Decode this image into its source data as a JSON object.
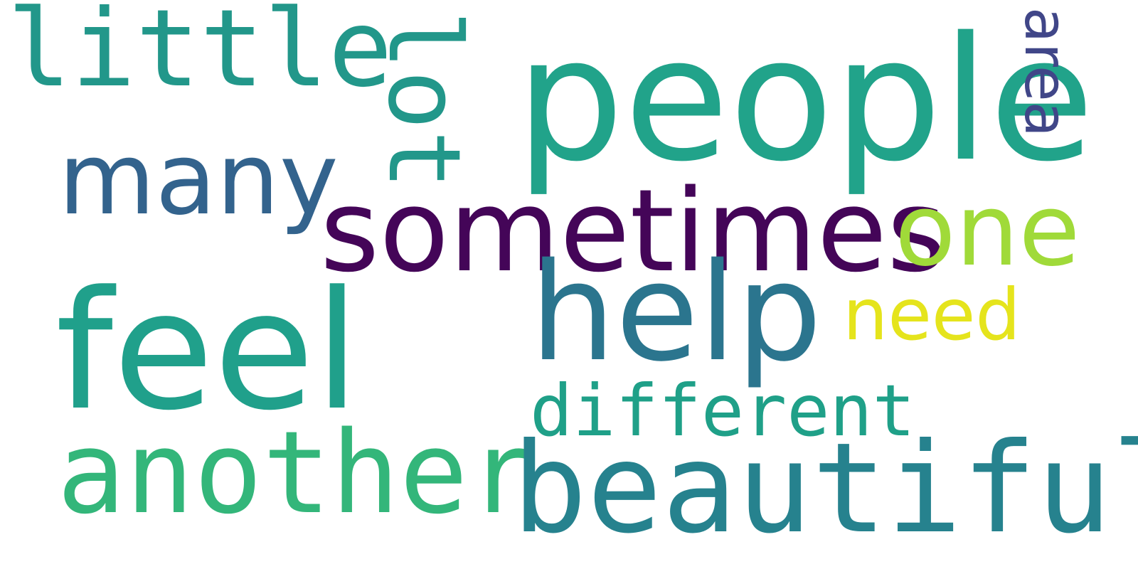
{
  "cloud": {
    "words": {
      "little": {
        "text": "little",
        "color": "#22978a"
      },
      "people": {
        "text": "people",
        "color": "#21a38a"
      },
      "many": {
        "text": "many",
        "color": "#33638d"
      },
      "lot": {
        "text": "lot",
        "color": "#22978a"
      },
      "area": {
        "text": "area",
        "color": "#404688"
      },
      "sometimes": {
        "text": "sometimes",
        "color": "#440558"
      },
      "one": {
        "text": "one",
        "color": "#a0da39"
      },
      "help": {
        "text": "help",
        "color": "#2b758e"
      },
      "need": {
        "text": "need",
        "color": "#e5e41c"
      },
      "feel": {
        "text": "feel",
        "color": "#20a08b"
      },
      "different": {
        "text": "different",
        "color": "#1fa088"
      },
      "another": {
        "text": "another",
        "color": "#33b67a"
      },
      "beautiful": {
        "text": "beautiful",
        "color": "#26828e"
      }
    }
  }
}
